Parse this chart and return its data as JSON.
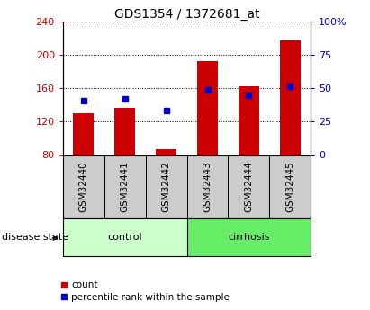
{
  "title": "GDS1354 / 1372681_at",
  "categories": [
    "GSM32440",
    "GSM32441",
    "GSM32442",
    "GSM32443",
    "GSM32444",
    "GSM32445"
  ],
  "bar_values": [
    130,
    137,
    87,
    193,
    163,
    218
  ],
  "percentile_values": [
    145,
    147,
    133,
    158,
    152,
    163
  ],
  "ylim_left": [
    80,
    240
  ],
  "ylim_right": [
    0,
    100
  ],
  "yticks_left": [
    80,
    120,
    160,
    200,
    240
  ],
  "yticks_right": [
    0,
    25,
    50,
    75,
    100
  ],
  "ytick_labels_right": [
    "0",
    "25",
    "50",
    "75",
    "100%"
  ],
  "bar_color": "#cc0000",
  "percentile_color": "#0000cc",
  "background_color": "#ffffff",
  "control_color": "#ccffcc",
  "cirrhosis_color": "#66ee66",
  "tick_bg_color": "#cccccc",
  "disease_state_label": "disease state",
  "legend_count": "count",
  "legend_percentile": "percentile rank within the sample",
  "bar_width": 0.5,
  "title_fontsize": 10,
  "axis_fontsize": 8,
  "label_fontsize": 8,
  "legend_fontsize": 7.5
}
